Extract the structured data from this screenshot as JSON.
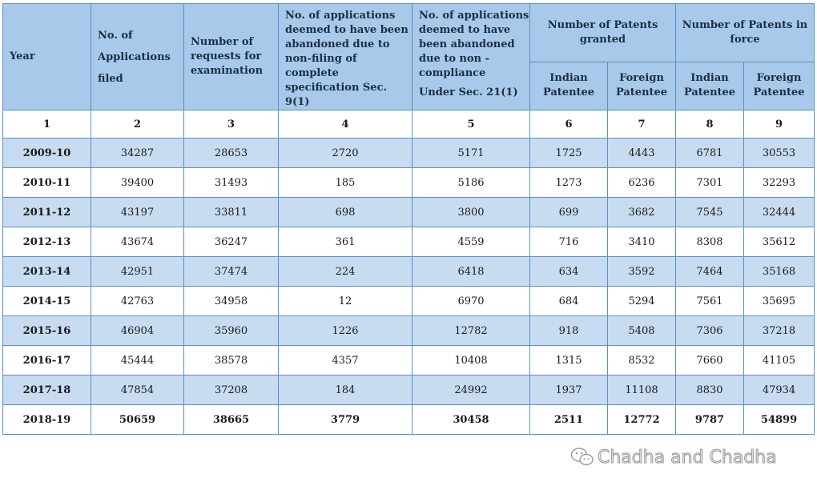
{
  "header": {
    "year": "Year",
    "col2": "No. of Applications filed",
    "col3": "Number of requests for examination",
    "col4": "No. of applications deemed to have been abandoned due to non-filing of complete specification Sec. 9(1)",
    "col5_line1": "No. of applications deemed to have been abandoned due to non -compliance",
    "col5_line2": "Under Sec. 21(1)",
    "granted": "Number of Patents granted",
    "in_force": "Number of Patents in force",
    "indian": "Indian Patentee",
    "foreign": "Foreign Patentee"
  },
  "col_numbers": [
    "1",
    "2",
    "3",
    "4",
    "5",
    "6",
    "7",
    "8",
    "9"
  ],
  "rows": [
    [
      "2009-10",
      "34287",
      "28653",
      "2720",
      "5171",
      "1725",
      "4443",
      "6781",
      "30553"
    ],
    [
      "2010-11",
      "39400",
      "31493",
      "185",
      "5186",
      "1273",
      "6236",
      "7301",
      "32293"
    ],
    [
      "2011-12",
      "43197",
      "33811",
      "698",
      "3800",
      "699",
      "3682",
      "7545",
      "32444"
    ],
    [
      "2012-13",
      "43674",
      "36247",
      "361",
      "4559",
      "716",
      "3410",
      "8308",
      "35612"
    ],
    [
      "2013-14",
      "42951",
      "37474",
      "224",
      "6418",
      "634",
      "3592",
      "7464",
      "35168"
    ],
    [
      "2014-15",
      "42763",
      "34958",
      "12",
      "6970",
      "684",
      "5294",
      "7561",
      "35695"
    ],
    [
      "2015-16",
      "46904",
      "35960",
      "1226",
      "12782",
      "918",
      "5408",
      "7306",
      "37218"
    ],
    [
      "2016-17",
      "45444",
      "38578",
      "4357",
      "10408",
      "1315",
      "8532",
      "7660",
      "41105"
    ],
    [
      "2017-18",
      "47854",
      "37208",
      "184",
      "24992",
      "1937",
      "11108",
      "8830",
      "47934"
    ],
    [
      "2018-19",
      "50659",
      "38665",
      "3779",
      "30458",
      "2511",
      "12772",
      "9787",
      "54899"
    ]
  ],
  "watermark": {
    "text": "Chadha and Chadha",
    "icon": "wechat-icon"
  },
  "colors": {
    "header_bg": "#a9c9ea",
    "band_bg": "#c7dcf1",
    "border": "#5b8fc9"
  }
}
